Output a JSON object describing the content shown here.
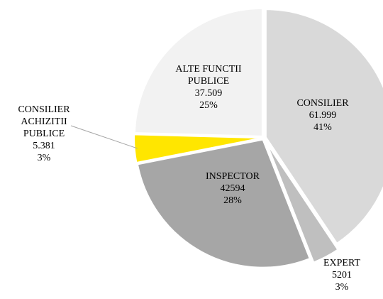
{
  "chart_data": {
    "type": "pie",
    "categories": [
      "CONSILIER",
      "EXPERT",
      "INSPECTOR",
      "CONSILIER ACHIZITII PUBLICE",
      "ALTE FUNCTII PUBLICE"
    ],
    "values": [
      61999,
      5201,
      42594,
      5381,
      37509
    ],
    "value_labels": [
      "61.999",
      "5201",
      "42594",
      "5.381",
      "37.509"
    ],
    "percent_labels": [
      "41%",
      "3%",
      "28%",
      "3%",
      "25%"
    ],
    "colors": [
      "#d9d9d9",
      "#bfbfbf",
      "#a6a6a6",
      "#ffe600",
      "#f2f2f2"
    ]
  }
}
